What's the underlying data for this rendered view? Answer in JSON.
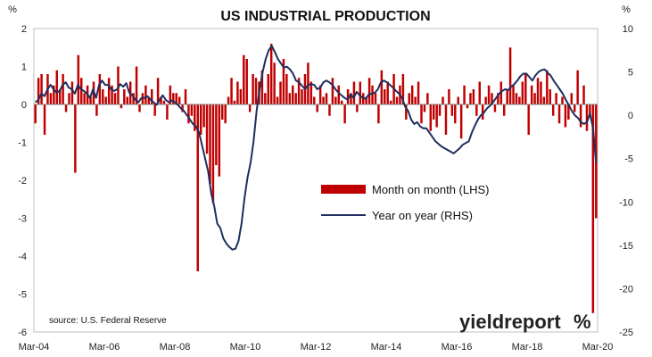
{
  "chart_data": {
    "type": "bar+line",
    "title": "US INDUSTRIAL PRODUCTION",
    "left_axis_unit": "%",
    "right_axis_unit": "%",
    "left_ylim": [
      -6,
      2
    ],
    "right_ylim": [
      -25,
      10
    ],
    "left_ticks": [
      "2",
      "1",
      "0",
      "-1",
      "-2",
      "-3",
      "-4",
      "-5",
      "-6"
    ],
    "right_ticks": [
      "10",
      "5",
      "0",
      "-5",
      "-10",
      "-15",
      "-20",
      "-25"
    ],
    "x_ticks": [
      "Mar-04",
      "Mar-06",
      "Mar-08",
      "Mar-10",
      "Mar-12",
      "Mar-14",
      "Mar-16",
      "Mar-18",
      "Mar-20"
    ],
    "grid": false,
    "legend_position": "center-right",
    "series": [
      {
        "name": "Month on month (LHS)",
        "kind": "bar",
        "axis": "left",
        "color": "#c00000",
        "values": [
          -0.5,
          0.7,
          0.8,
          -0.8,
          0.8,
          0.3,
          0.5,
          0.9,
          0.4,
          0.8,
          -0.2,
          0.3,
          0.6,
          -1.8,
          1.3,
          0.7,
          0.3,
          0.5,
          0.2,
          0.6,
          -0.3,
          0.8,
          0.4,
          0.2,
          0.7,
          0.5,
          0.3,
          1.0,
          -0.1,
          0.4,
          0.2,
          0.6,
          0.3,
          1.0,
          -0.2,
          0.3,
          0.5,
          0.2,
          0.4,
          -0.3,
          0.7,
          0.2,
          0.1,
          -0.4,
          0.5,
          0.3,
          0.3,
          0.2,
          -0.2,
          0.4,
          -0.5,
          -0.3,
          -0.7,
          -4.4,
          -0.8,
          -0.6,
          -1.3,
          -2.1,
          -2.6,
          -1.6,
          -1.9,
          -0.4,
          -0.5,
          0.2,
          0.7,
          0.1,
          0.6,
          0.4,
          1.3,
          1.2,
          -0.2,
          0.8,
          0.7,
          0.6,
          0.9,
          0.3,
          0.8,
          1.6,
          1.1,
          0.2,
          0.6,
          1.2,
          0.8,
          0.3,
          0.5,
          0.3,
          0.7,
          0.4,
          0.8,
          1.1,
          0.6,
          0.2,
          -0.2,
          0.5,
          0.2,
          0.3,
          -0.3,
          0.7,
          0.2,
          0.5,
          0.1,
          -0.5,
          0.4,
          0.3,
          0.6,
          -0.2,
          0.6,
          0.3,
          0.2,
          0.7,
          0.5,
          0.3,
          -0.5,
          0.9,
          0.4,
          0.6,
          0.1,
          0.8,
          0.2,
          0.5,
          0.8,
          -0.4,
          0.3,
          0.5,
          0.2,
          0.6,
          -0.5,
          -0.2,
          0.3,
          -0.7,
          -0.4,
          -0.6,
          -0.3,
          0.2,
          -0.8,
          0.4,
          -0.3,
          -0.5,
          0.2,
          -0.9,
          0.5,
          -0.1,
          0.3,
          0.4,
          -0.3,
          0.6,
          -0.4,
          0.2,
          0.5,
          0.3,
          -0.2,
          0.3,
          0.6,
          -0.3,
          0.4,
          1.5,
          0.5,
          0.3,
          0.2,
          0.6,
          0.8,
          -0.8,
          0.5,
          0.3,
          0.7,
          0.6,
          0.2,
          0.9,
          0.4,
          -0.3,
          0.3,
          -0.5,
          0.2,
          -0.6,
          -0.4,
          0.3,
          -0.2,
          0.9,
          -0.6,
          0.5,
          -0.7,
          -0.3,
          -5.5,
          -3.0
        ]
      },
      {
        "name": "Year on year (RHS)",
        "kind": "line",
        "axis": "right",
        "color": "#1f2e5e",
        "values": [
          1.5,
          1.8,
          2.5,
          2.2,
          3.0,
          3.5,
          3.0,
          2.6,
          2.8,
          3.5,
          3.8,
          3.2,
          3.0,
          2.5,
          3.5,
          3.0,
          2.8,
          2.5,
          2.0,
          3.0,
          2.0,
          3.5,
          4.0,
          3.5,
          3.5,
          3.0,
          2.8,
          3.0,
          3.6,
          3.3,
          3.7,
          2.6,
          2.3,
          1.8,
          1.5,
          2.0,
          2.0,
          2.2,
          1.8,
          1.5,
          1.2,
          1.8,
          2.3,
          1.8,
          1.5,
          1.7,
          1.5,
          1.2,
          0.8,
          0.5,
          0.0,
          -0.5,
          -1.0,
          -1.3,
          -2.0,
          -3.5,
          -5.0,
          -6.5,
          -9.0,
          -10.5,
          -12.5,
          -13.0,
          -14.2,
          -14.8,
          -15.2,
          -15.5,
          -15.4,
          -14.5,
          -12.5,
          -9.5,
          -7.2,
          -5.5,
          -3.0,
          0.5,
          3.0,
          5.0,
          6.5,
          7.5,
          8.0,
          7.3,
          6.5,
          6.0,
          5.5,
          5.6,
          5.3,
          4.8,
          4.0,
          3.8,
          3.4,
          3.0,
          3.5,
          3.6,
          3.5,
          3.0,
          3.2,
          3.8,
          4.0,
          3.8,
          3.5,
          3.0,
          2.6,
          2.3,
          2.0,
          1.8,
          2.4,
          2.0,
          2.7,
          2.3,
          2.0,
          1.9,
          2.4,
          2.5,
          2.6,
          3.0,
          3.8,
          4.0,
          3.8,
          3.5,
          3.2,
          2.8,
          2.5,
          2.0,
          1.0,
          0.5,
          -0.5,
          -1.0,
          -0.8,
          -1.3,
          -1.5,
          -1.5,
          -2.0,
          -2.5,
          -3.0,
          -3.3,
          -3.6,
          -3.8,
          -4.0,
          -4.2,
          -4.4,
          -4.1,
          -3.8,
          -3.4,
          -3.2,
          -3.0,
          -2.0,
          -1.2,
          -0.5,
          0.0,
          0.3,
          0.8,
          1.1,
          1.5,
          2.0,
          2.5,
          2.8,
          3.0,
          2.9,
          3.3,
          3.6,
          4.0,
          4.5,
          4.8,
          4.8,
          4.4,
          4.0,
          4.6,
          5.0,
          5.2,
          5.3,
          4.9,
          4.6,
          4.0,
          3.5,
          3.0,
          2.5,
          1.8,
          1.2,
          0.5,
          0.0,
          -0.3,
          -0.8,
          -1.0,
          -0.8,
          0.2,
          -1.5,
          -5.5
        ]
      }
    ],
    "source": "source: U.S. Federal Reserve",
    "logo_text": "yieldreport",
    "logo_symbol": "%",
    "logo_colors": {
      "text": "#222222",
      "percent": "#c00000",
      "percent_slash": "#2e8b3a"
    }
  }
}
